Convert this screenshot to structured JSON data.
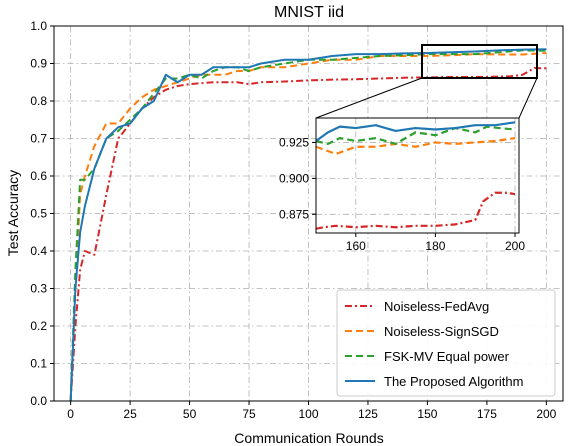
{
  "chart_data": {
    "type": "line",
    "title": "MNIST iid",
    "xlabel": "Communication Rounds",
    "ylabel": "Test Accuracy",
    "xlim": [
      -7,
      207
    ],
    "ylim": [
      0.0,
      1.0
    ],
    "xticks": [
      "0",
      "25",
      "50",
      "75",
      "100",
      "125",
      "150",
      "175",
      "200"
    ],
    "yticks": [
      "0.0",
      "0.1",
      "0.2",
      "0.3",
      "0.4",
      "0.5",
      "0.6",
      "0.7",
      "0.8",
      "0.9",
      "1.0"
    ],
    "grid": true,
    "legend_position": "lower-right",
    "series": [
      {
        "name": "Noiseless-FedAvg",
        "color": "#d62728",
        "dash": "dashdot",
        "x": [
          0,
          2,
          4,
          6,
          10,
          15,
          20,
          25,
          30,
          35,
          40,
          45,
          50,
          60,
          70,
          75,
          80,
          90,
          100,
          110,
          120,
          130,
          140,
          150,
          160,
          170,
          180,
          185,
          190,
          195,
          200
        ],
        "y": [
          0.0,
          0.2,
          0.35,
          0.4,
          0.39,
          0.55,
          0.7,
          0.74,
          0.78,
          0.81,
          0.83,
          0.84,
          0.845,
          0.85,
          0.85,
          0.845,
          0.85,
          0.852,
          0.855,
          0.857,
          0.858,
          0.86,
          0.862,
          0.863,
          0.864,
          0.864,
          0.865,
          0.866,
          0.87,
          0.888,
          0.887
        ]
      },
      {
        "name": "Noiseless-SignSGD",
        "color": "#ff7f0e",
        "dash": "dashed",
        "x": [
          0,
          2,
          4,
          6,
          10,
          15,
          20,
          25,
          30,
          35,
          40,
          45,
          50,
          55,
          60,
          65,
          70,
          75,
          80,
          90,
          100,
          110,
          120,
          130,
          140,
          150,
          160,
          170,
          180,
          190,
          200
        ],
        "y": [
          0.0,
          0.3,
          0.55,
          0.6,
          0.68,
          0.74,
          0.74,
          0.78,
          0.81,
          0.83,
          0.84,
          0.85,
          0.86,
          0.87,
          0.87,
          0.87,
          0.88,
          0.88,
          0.89,
          0.89,
          0.9,
          0.91,
          0.91,
          0.92,
          0.92,
          0.92,
          0.922,
          0.925,
          0.924,
          0.924,
          0.928
        ]
      },
      {
        "name": "FSK-MV Equal power",
        "color": "#2ca02c",
        "dash": "dashed",
        "x": [
          0,
          2,
          4,
          6,
          10,
          15,
          20,
          25,
          30,
          35,
          40,
          45,
          50,
          55,
          60,
          65,
          70,
          75,
          80,
          90,
          100,
          110,
          120,
          130,
          140,
          150,
          160,
          170,
          180,
          190,
          200
        ],
        "y": [
          0.0,
          0.35,
          0.59,
          0.59,
          0.62,
          0.7,
          0.72,
          0.75,
          0.78,
          0.82,
          0.86,
          0.86,
          0.87,
          0.86,
          0.88,
          0.89,
          0.89,
          0.88,
          0.89,
          0.9,
          0.91,
          0.91,
          0.915,
          0.92,
          0.922,
          0.925,
          0.925,
          0.925,
          0.93,
          0.935,
          0.934
        ]
      },
      {
        "name": "The Proposed Algorithm",
        "color": "#1f77b4",
        "dash": "solid",
        "x": [
          0,
          2,
          4,
          6,
          10,
          15,
          20,
          25,
          30,
          35,
          40,
          45,
          50,
          55,
          60,
          65,
          70,
          75,
          80,
          90,
          100,
          110,
          120,
          130,
          140,
          150,
          160,
          170,
          180,
          190,
          200
        ],
        "y": [
          0.0,
          0.3,
          0.45,
          0.52,
          0.62,
          0.7,
          0.73,
          0.74,
          0.78,
          0.8,
          0.87,
          0.85,
          0.87,
          0.87,
          0.89,
          0.89,
          0.89,
          0.89,
          0.9,
          0.91,
          0.91,
          0.92,
          0.925,
          0.925,
          0.927,
          0.928,
          0.93,
          0.932,
          0.935,
          0.937,
          0.938
        ]
      }
    ],
    "inset": {
      "xlim": [
        150,
        201
      ],
      "ylim": [
        0.862,
        0.942
      ],
      "xticks": [
        "160",
        "180",
        "200"
      ],
      "yticks": [
        "0.875",
        "0.900",
        "0.925"
      ],
      "series": [
        {
          "name": "Noiseless-FedAvg",
          "x": [
            150,
            152,
            155,
            160,
            165,
            170,
            175,
            180,
            185,
            190,
            192,
            195,
            198,
            200
          ],
          "y": [
            0.865,
            0.866,
            0.867,
            0.866,
            0.867,
            0.866,
            0.867,
            0.867,
            0.868,
            0.871,
            0.884,
            0.89,
            0.89,
            0.889
          ]
        },
        {
          "name": "Noiseless-SignSGD",
          "x": [
            150,
            155,
            160,
            165,
            170,
            175,
            180,
            185,
            190,
            195,
            200
          ],
          "y": [
            0.922,
            0.917,
            0.922,
            0.922,
            0.924,
            0.922,
            0.925,
            0.924,
            0.925,
            0.926,
            0.928
          ]
        },
        {
          "name": "FSK-MV Equal power",
          "x": [
            150,
            153,
            156,
            160,
            165,
            170,
            175,
            180,
            185,
            190,
            193,
            196,
            200
          ],
          "y": [
            0.926,
            0.924,
            0.928,
            0.926,
            0.928,
            0.924,
            0.932,
            0.93,
            0.935,
            0.932,
            0.936,
            0.935,
            0.934
          ]
        },
        {
          "name": "The Proposed Algorithm",
          "x": [
            150,
            153,
            156,
            160,
            165,
            170,
            175,
            180,
            185,
            190,
            195,
            200
          ],
          "y": [
            0.926,
            0.932,
            0.936,
            0.935,
            0.937,
            0.933,
            0.935,
            0.934,
            0.935,
            0.937,
            0.937,
            0.939
          ]
        }
      ]
    }
  }
}
